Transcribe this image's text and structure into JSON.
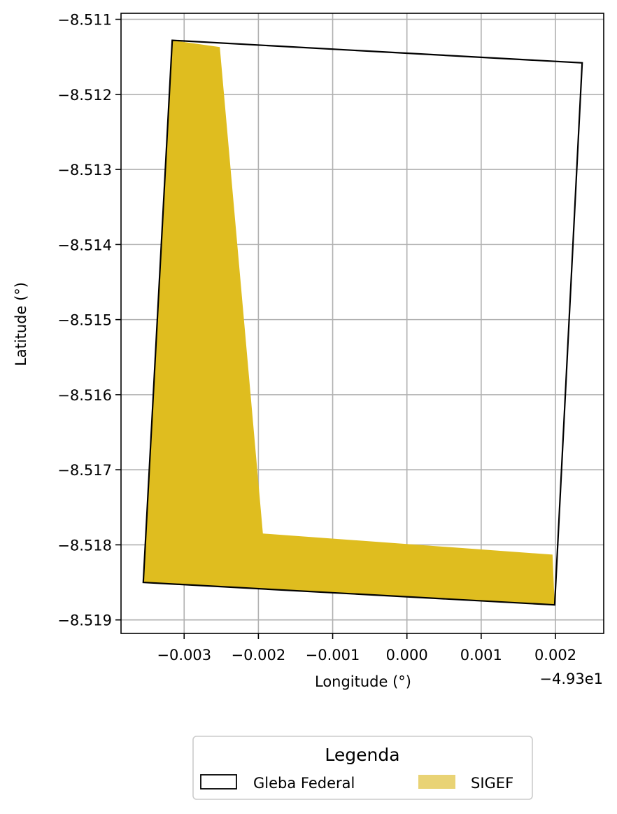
{
  "chart_data": {
    "type": "map",
    "xlabel": "Longitude (°)",
    "ylabel": "Latitude (°)",
    "x_offset_text": "−4.93e1",
    "x_offset": -49.3,
    "xlim": [
      -0.00385,
      0.00265
    ],
    "ylim": [
      -8.51918,
      -8.51092
    ],
    "x_ticks": [
      -0.003,
      -0.002,
      -0.001,
      0.0,
      0.001,
      0.002
    ],
    "x_tick_labels": [
      "−0.003",
      "−0.002",
      "−0.001",
      "0.000",
      "0.001",
      "0.002"
    ],
    "y_ticks": [
      -8.511,
      -8.512,
      -8.513,
      -8.514,
      -8.515,
      -8.516,
      -8.517,
      -8.518,
      -8.519
    ],
    "y_tick_labels": [
      "−8.511",
      "−8.512",
      "−8.513",
      "−8.514",
      "−8.515",
      "−8.516",
      "−8.517",
      "−8.518",
      "−8.519"
    ],
    "grid": true,
    "layers": [
      {
        "name": "SIGEF",
        "fill": "#dfbd1f",
        "polygon": [
          [
            -0.00316,
            -8.51128
          ],
          [
            -0.00252,
            -8.51137
          ],
          [
            -0.00194,
            -8.51785
          ],
          [
            0.00196,
            -8.51813
          ],
          [
            0.00199,
            -8.5188
          ],
          [
            -0.00355,
            -8.5185
          ]
        ]
      },
      {
        "name": "Gleba Federal",
        "fill": "none",
        "stroke": "#000000",
        "polygon": [
          [
            -0.00316,
            -8.51128
          ],
          [
            0.00236,
            -8.51158
          ],
          [
            0.00199,
            -8.5188
          ],
          [
            -0.00355,
            -8.5185
          ]
        ]
      }
    ],
    "legend": {
      "title": "Legenda",
      "placement": "bottom-center",
      "entries": [
        {
          "label": "Gleba Federal",
          "style": "outline",
          "color": "#000000"
        },
        {
          "label": "SIGEF",
          "style": "filled",
          "color": "#e9d375"
        }
      ]
    }
  }
}
